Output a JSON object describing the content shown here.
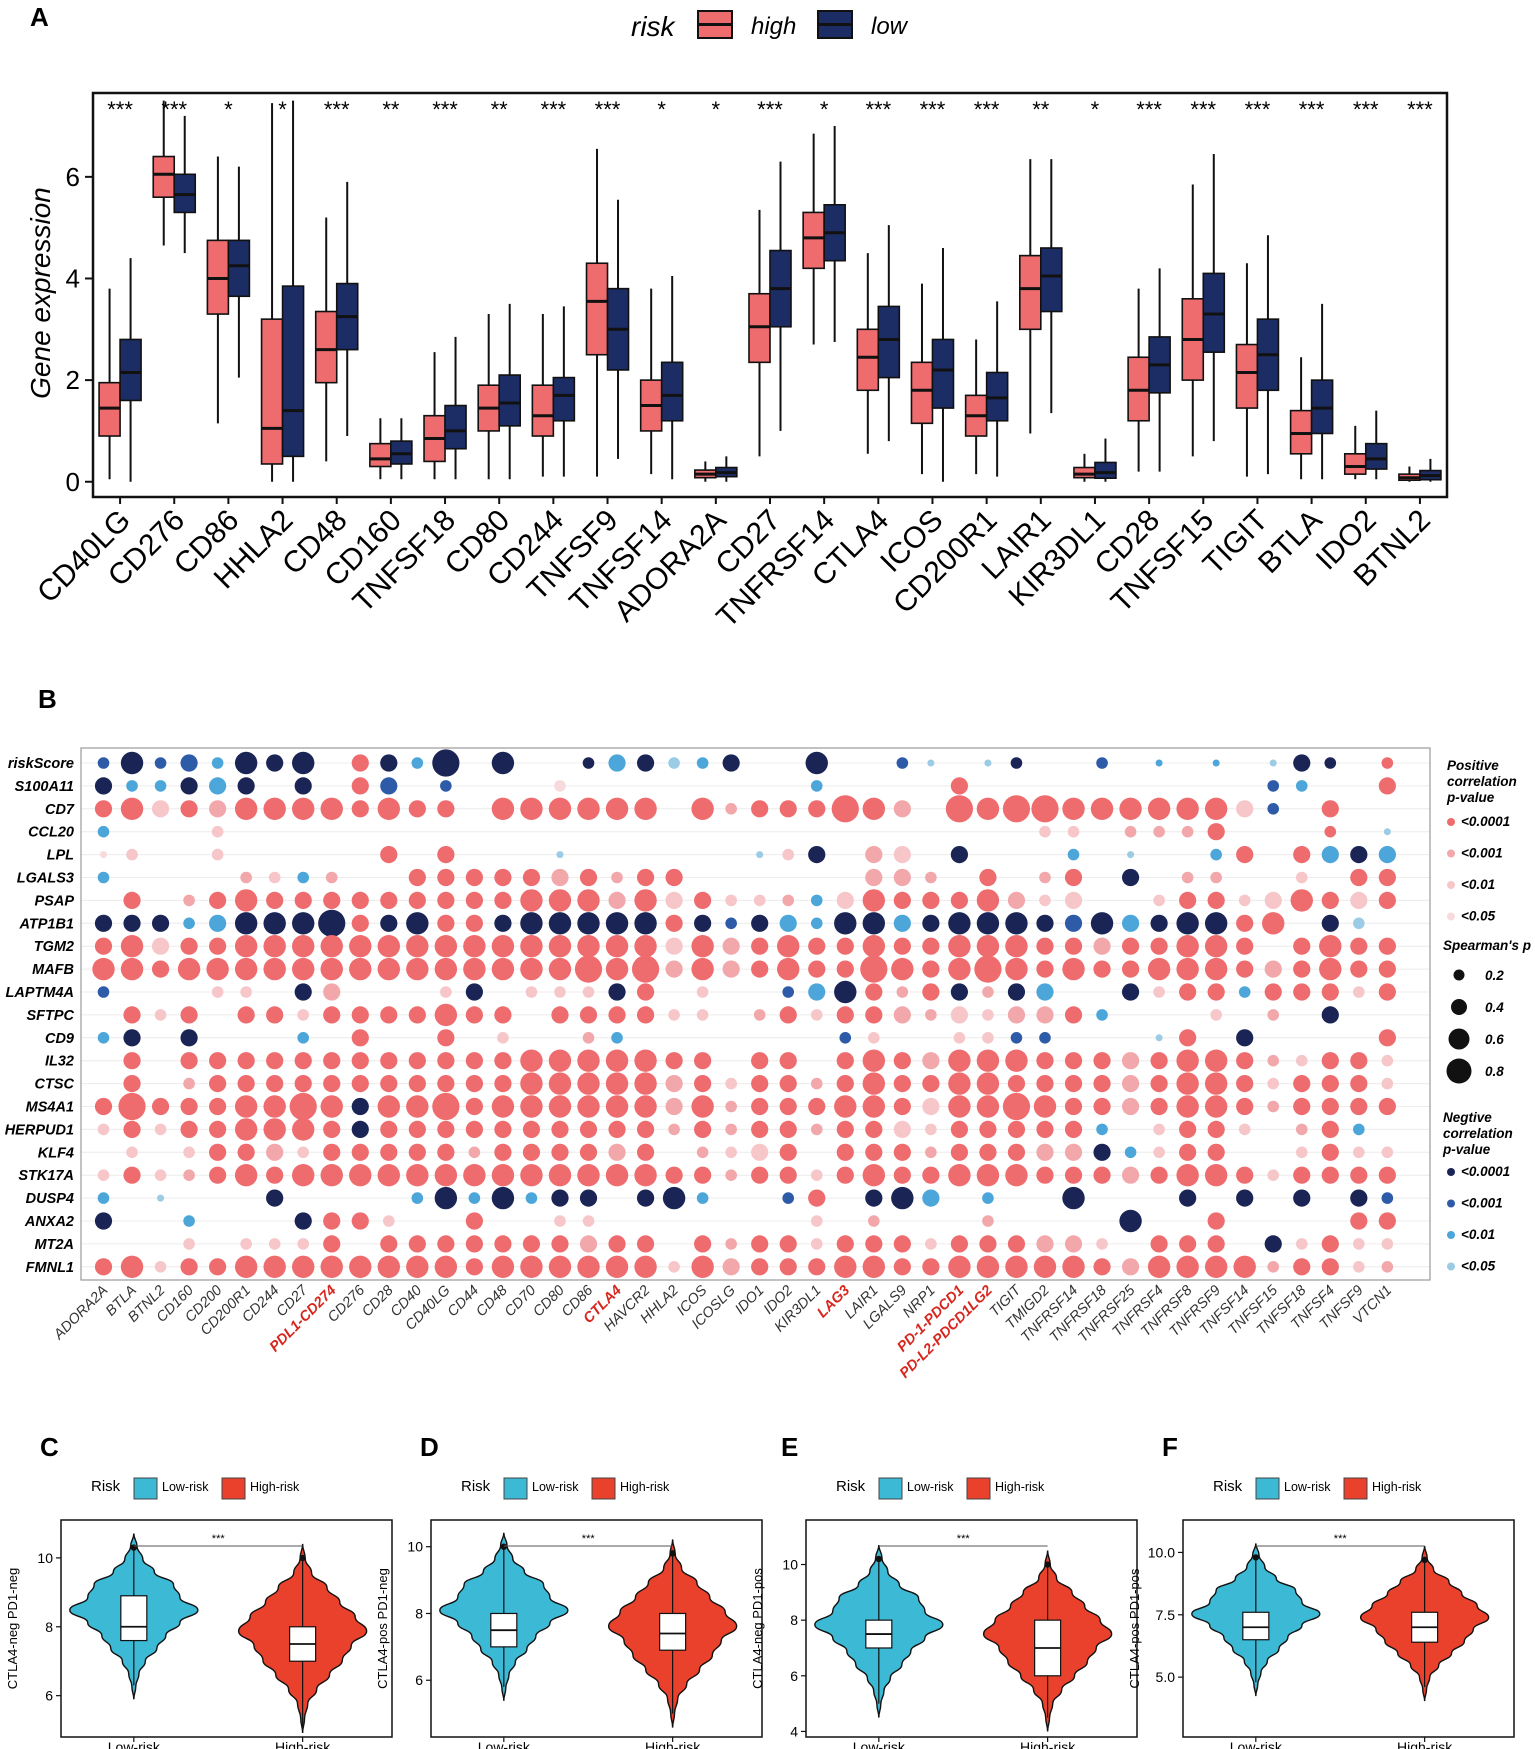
{
  "colors": {
    "high": "#EE6B6E",
    "low": "#1C2D66",
    "pos_strong": "#EE6B6E",
    "pos_mid": "#F2A7AB",
    "pos_weak": "#F6C6C9",
    "pos_faint": "#F8DADC",
    "neg_strong": "#1A2555",
    "neg_mid": "#2E5BA8",
    "neg_weak": "#4CA6D9",
    "neg_faint": "#9CCBE6",
    "violin_low": "#3CB9D4",
    "violin_high": "#E9412B",
    "label_red": "#D7261E"
  },
  "panels": {
    "a": {
      "letter": "A"
    },
    "b": {
      "letter": "B"
    },
    "c": {
      "letter": "C"
    },
    "d": {
      "letter": "D"
    },
    "e": {
      "letter": "E"
    },
    "f": {
      "letter": "F"
    }
  },
  "chart_data": [
    {
      "panel": "A",
      "type": "box",
      "legend": {
        "title": "risk",
        "items": [
          "high",
          "low"
        ]
      },
      "ylabel": "Gene expression",
      "ylim": [
        -0.3,
        7.65
      ],
      "yticks": [
        0,
        2,
        4,
        6
      ],
      "genes": [
        "CD40LG",
        "CD276",
        "CD86",
        "HHLA2",
        "CD48",
        "CD160",
        "TNFSF18",
        "CD80",
        "CD244",
        "TNFSF9",
        "TNFSF14",
        "ADORA2A",
        "CD27",
        "TNFRSF14",
        "CTLA4",
        "ICOS",
        "CD200R1",
        "LAIR1",
        "KIR3DL1",
        "CD28",
        "TNFSF15",
        "TIGIT",
        "BTLA",
        "IDO2",
        "BTNL2"
      ],
      "significance": [
        "***",
        "***",
        "*",
        "*",
        "***",
        "**",
        "***",
        "**",
        "***",
        "***",
        "*",
        "*",
        "***",
        "*",
        "***",
        "***",
        "***",
        "**",
        "*",
        "***",
        "***",
        "***",
        "***",
        "***",
        "***"
      ],
      "high": [
        [
          0.05,
          0.9,
          1.45,
          1.95,
          3.8
        ],
        [
          4.65,
          5.6,
          6.05,
          6.4,
          7.5
        ],
        [
          1.15,
          3.3,
          4.0,
          4.75,
          6.4
        ],
        [
          0.0,
          0.35,
          1.05,
          3.2,
          7.45
        ],
        [
          0.4,
          1.95,
          2.6,
          3.35,
          5.2
        ],
        [
          0.05,
          0.3,
          0.45,
          0.75,
          1.25
        ],
        [
          0.05,
          0.4,
          0.85,
          1.3,
          2.55
        ],
        [
          0.05,
          1.0,
          1.45,
          1.9,
          3.3
        ],
        [
          0.1,
          0.9,
          1.3,
          1.9,
          3.3
        ],
        [
          0.1,
          2.5,
          3.55,
          4.3,
          6.55
        ],
        [
          0.15,
          1.0,
          1.5,
          2.0,
          3.8
        ],
        [
          0.0,
          0.08,
          0.15,
          0.23,
          0.4
        ],
        [
          0.5,
          2.35,
          3.05,
          3.7,
          5.35
        ],
        [
          2.7,
          4.2,
          4.8,
          5.3,
          6.85
        ],
        [
          0.55,
          1.8,
          2.45,
          3.0,
          4.5
        ],
        [
          0.15,
          1.15,
          1.8,
          2.35,
          3.9
        ],
        [
          0.15,
          0.9,
          1.3,
          1.7,
          2.8
        ],
        [
          0.95,
          3.0,
          3.8,
          4.45,
          6.35
        ],
        [
          0.0,
          0.08,
          0.15,
          0.28,
          0.55
        ],
        [
          0.2,
          1.2,
          1.8,
          2.45,
          3.8
        ],
        [
          0.5,
          2.0,
          2.8,
          3.6,
          5.85
        ],
        [
          0.1,
          1.45,
          2.15,
          2.7,
          4.3
        ],
        [
          0.05,
          0.55,
          0.95,
          1.4,
          2.45
        ],
        [
          0.05,
          0.15,
          0.3,
          0.55,
          1.1
        ],
        [
          0.0,
          0.03,
          0.08,
          0.15,
          0.3
        ]
      ],
      "low": [
        [
          0.0,
          1.6,
          2.15,
          2.8,
          4.4
        ],
        [
          4.5,
          5.3,
          5.65,
          6.05,
          7.2
        ],
        [
          2.05,
          3.65,
          4.25,
          4.75,
          6.2
        ],
        [
          0.0,
          0.5,
          1.4,
          3.85,
          7.5
        ],
        [
          0.9,
          2.6,
          3.25,
          3.9,
          5.9
        ],
        [
          0.05,
          0.35,
          0.55,
          0.8,
          1.25
        ],
        [
          0.05,
          0.65,
          1.0,
          1.5,
          2.85
        ],
        [
          0.05,
          1.1,
          1.55,
          2.1,
          3.5
        ],
        [
          0.1,
          1.2,
          1.7,
          2.05,
          3.45
        ],
        [
          0.45,
          2.2,
          3.0,
          3.8,
          5.55
        ],
        [
          0.05,
          1.2,
          1.7,
          2.35,
          4.05
        ],
        [
          0.0,
          0.1,
          0.18,
          0.28,
          0.5
        ],
        [
          1.0,
          3.05,
          3.8,
          4.55,
          6.3
        ],
        [
          2.75,
          4.35,
          4.9,
          5.45,
          7.0
        ],
        [
          0.8,
          2.05,
          2.8,
          3.45,
          5.05
        ],
        [
          0.0,
          1.45,
          2.2,
          2.8,
          4.6
        ],
        [
          0.1,
          1.2,
          1.65,
          2.15,
          3.55
        ],
        [
          1.35,
          3.35,
          4.05,
          4.6,
          6.35
        ],
        [
          0.0,
          0.07,
          0.18,
          0.38,
          0.85
        ],
        [
          0.2,
          1.75,
          2.3,
          2.85,
          4.2
        ],
        [
          0.8,
          2.55,
          3.3,
          4.1,
          6.45
        ],
        [
          0.15,
          1.8,
          2.5,
          3.2,
          4.85
        ],
        [
          0.05,
          0.95,
          1.45,
          2.0,
          3.5
        ],
        [
          0.05,
          0.25,
          0.45,
          0.75,
          1.4
        ],
        [
          0.0,
          0.04,
          0.12,
          0.22,
          0.45
        ]
      ]
    },
    {
      "panel": "B",
      "type": "dot",
      "rows": [
        "riskScore",
        "S100A11",
        "CD7",
        "CCL20",
        "LPL",
        "LGALS3",
        "PSAP",
        "ATP1B1",
        "TGM2",
        "MAFB",
        "LAPTM4A",
        "SFTPC",
        "CD9",
        "IL32",
        "CTSC",
        "MS4A1",
        "HERPUD1",
        "KLF4",
        "STK17A",
        "DUSP4",
        "ANXA2",
        "MT2A",
        "FMNL1"
      ],
      "columns": [
        "ADORA2A",
        "BTLA",
        "BTNL2",
        "CD160",
        "CD200",
        "CD200R1",
        "CD244",
        "CD27",
        "PDL1-CD274",
        "CD276",
        "CD28",
        "CD40",
        "CD40LG",
        "CD44",
        "CD48",
        "CD70",
        "CD80",
        "CD86",
        "CTLA4",
        "HAVCR2",
        "HHLA2",
        "ICOS",
        "ICOSLG",
        "IDO1",
        "IDO2",
        "KIR3DL1",
        "LAG3",
        "LAIR1",
        "LGALS9",
        "NRP1",
        "PD-1-PDCD1",
        "PD-L2-PDCD1LG2",
        "TIGIT",
        "TMIGD2",
        "TNFRSF14",
        "TNFRSF18",
        "TNFRSF25",
        "TNFRSF4",
        "TNFRSF8",
        "TNFRSF9",
        "TNFSF14",
        "TNFSF15",
        "TNFSF18",
        "TNFSF4",
        "TNFSF9",
        "VTCN1"
      ],
      "highlighted_columns": [
        "PDL1-CD274",
        "CTLA4",
        "LAG3",
        "PD-1-PDCD1",
        "PD-L2-PDCD1LG2"
      ],
      "encoding": "cell = sign + p-class + size digit; P/N = positive/negative; a <0.0001, b <0.001, c <0.01, d <0.05; size digit 1-5 maps rho 0.1-0.9; '..' = not significant",
      "cells": [
        "Nb2 Na4 Nb2 Nb3 Nc2 Na4 Na3 Na4 .. Pa3 Na3 Nc2 Na5 .. Na4 .. .. Na2 Nc3 Na3 Nd2 Nc2 Na3 .. .. Na4 .. .. Nb2 Nd1 .. Nd1 Na2 .. .. Nb2 .. Nc1 .. Nc1 .. Nd1 Na3 Na2 .. Pa2 ..",
        "Na3 Nc2 Nc2 Na3 Nc3 Na3 .. Na3 .. Pa3 Nb3 .. Nb2 .. .. .. Pd2 .. .. .. .. .. .. .. .. Nc2 .. .. .. .. Pa3 .. .. .. .. .. .. .. .. .. .. Nb2 Nc2 .. .. Pa3",
        "Pa3 Pa4 Pc3 Pa3 Pb3 Pa4 Pa4 Pa4 Pa4 Pa3 Pa4 Pa3 Pa3 .. Pa4 Pa4 Pa4 Pa4 Pa4 Pa4 .. Pa4 Pb2 Pa3 Pa3 Pa3 Pa5 Pa4 Pb3 .. Pa5 Pa4 Pa5 Pa5 Pa4 Pa4 Pa4 Pa4 Pa4 Pa4 Pc3 Nb2 .. Pa3 .. ..",
        "Nc2 .. .. .. Pc2 .. .. .. .. .. .. .. .. .. .. .. .. .. .. .. .. .. .. .. .. .. .. .. .. .. .. .. .. Pc2 Pc2 .. Pb2 Pb2 Pb2 Pa3 .. .. .. Pa2 .. Nd1",
        "Pd1 Pc2 .. .. Pc2 .. .. .. .. .. Pa3 .. Pa3 .. .. .. Nd1 .. .. .. .. .. .. Nd1 Pc2 Na3 .. Pb3 Pc3 .. Na3 .. .. .. Nc2 .. Nd1 .. .. Nc2 Pa3 .. Pa3 Nc3 Na3 Nc3",
        "Nc2 .. .. .. .. Pb2 Pc2 Nc2 Pb2 .. .. Pa3 Pa3 Pa3 Pa3 Pa3 Pb3 Pa3 Pb2 Pa3 Pa3 .. .. .. .. .. .. Pb3 Pb3 Pb2 .. Pa3 .. Pb2 Pa3 .. Na3 .. Pb2 Pb2 .. .. Pc2 .. Pa3 Pa3",
        ".. Pa3 .. Pb2 Pa3 Pa4 Pa3 Pa3 Pa3 Pa3 Pa3 Pa3 Pa3 Pa3 Pa3 Pa4 Pa4 Pa4 Pb3 Pa4 Pc3 Pa3 Pc2 Pc2 Pb2 Nc2 Pc3 Pa4 Pa3 Pa3 Pa3 Pa4 Pb3 Pc2 Pc3 .. .. Pc2 Pa3 Pa3 Pc2 Pc3 Pa4 Pa3 Pc3 Pa3",
        "Na3 Na3 Na3 Nc2 Nc3 Na4 Na4 Na4 Na5 Pa3 Na3 Na4 Pa3 Pa3 Na3 Na4 Na4 Na4 Na4 Na4 Pa3 Na3 Nb2 Na3 Nc3 Nc2 Na4 Na4 Nc3 Na3 Na4 Na4 Na4 Na3 Nb3 Na4 Nc3 Na3 Na4 Na4 Pa3 Pa4 .. Na3 Nd2 ..",
        "Pa3 Pa4 Pc3 Pa3 Pa3 Pa4 Pa4 Pa4 Pa4 Pa4 Pa4 Pa4 Pa4 Pa4 Pa4 Pa4 Pa4 Pa4 Pa4 Pa4 Pc3 Pa4 Pb3 Pa3 Pa4 Pa3 Pa3 Pa4 Pa3 Pa3 Pa4 Pa4 Pa4 Pa3 Pa3 Pb3 Pa3 Pa3 Pa4 Pa4 Pa3 .. Pa3 Pa4 Pa3 Pa3",
        "Pa4 Pa4 Pa3 Pa4 Pa4 Pa4 Pa4 Pa4 Pa4 Pa4 Pa4 Pa4 Pa4 Pa4 Pa4 Pa4 Pa4 Pa5 Pa4 Pa5 Pb3 Pa4 Pb3 Pa3 Pa4 Pa3 Pa3 Pa5 Pa4 Pa3 Pa4 Pa5 Pa4 Pa3 Pa4 Pa3 Pa3 Pa4 Pa4 Pa4 Pa3 Pb3 Pa3 Pa4 Pa3 Pa3",
        "Nb2 .. .. .. Pc2 Pc2 .. Na3 Pb3 .. .. .. Pc2 Na3 .. Pc2 Pc2 Pc2 Na3 Pa3 .. Pc2 .. .. Nb2 Nc3 Na4 Pa3 Pb2 Pa3 Na3 Pb2 Na3 Nc3 .. .. Na3 Pc2 Pa3 Pa3 Nc2 Pa3 Pa3 Pa3 Pc2 Pa3",
        ".. Pa3 Pc2 Pa3 .. Pa3 Pa3 Pc2 Pa3 Pa3 Pa3 Pa3 Pa4 Pa3 Pa3 .. Pa3 Pa3 Pa3 Pa3 Pc2 Pc2 .. Pb2 Pa3 Pc2 Pa3 Pa3 Pb3 Pb2 Pc3 Pc2 Pb3 Pb3 Pa3 Nc2 .. .. .. Pc2 .. Pb2 .. Na3 .. ..",
        "Nc2 Na3 .. Na3 .. .. .. Nc2 .. Pa3 .. .. Pa3 .. Pc2 .. .. Pb2 Nc2 .. .. .. .. .. .. .. Nb2 Pc2 .. .. Pc2 Pc2 Nb2 Nb2 .. .. .. Nd1 Pa3 .. Na3 .. .. .. .. Pa3",
        ".. Pa3 .. Pa3 Pa3 Pa3 Pa3 Pa3 Pa3 Pa3 Pa3 Pa3 Pa3 Pa3 Pa3 Pa4 Pa4 Pa4 Pa4 Pa4 Pa3 Pa3 .. Pa3 Pa3 .. Pa3 Pa4 Pa3 Pb3 Pa4 Pa4 Pa4 Pa3 Pa3 Pa3 Pb3 Pa3 Pa4 Pa4 Pa3 Pb2 Pc2 Pa3 Pa3 Pc2",
        ".. Pa3 .. Pb2 Pa3 Pa3 Pa3 Pa3 Pa3 Pa3 Pa3 Pa3 Pa3 Pa3 Pa3 Pa4 Pa4 Pa4 Pa4 Pa4 Pb3 Pa3 Pc2 Pa3 Pa3 Pb2 Pa3 Pa4 Pa3 Pa3 Pa4 Pa4 Pa3 Pa3 Pa3 Pa3 Pb3 Pa3 Pa4 Pa4 Pa3 Pc2 Pa3 Pa3 Pa3 Pc2",
        "Pa3 Pa5 Pa3 Pa3 Pa3 Pa4 Pa4 Pa5 Pa4 Na3 Pa4 Pa4 Pa5 Pa3 Pa4 Pa4 Pa4 Pa4 Pa4 Pa4 Pb3 Pa4 Pb2 Pa3 Pa3 Pa3 Pa4 Pa4 Pa3 Pc3 Pa4 Pa4 Pa5 Pa4 Pa3 Pa3 Pb3 Pa3 Pa4 Pa4 Pa3 Pb2 Pa3 Pa3 Pa3 Pa3",
        "Pc2 Pa3 Pc2 Pa3 Pa3 Pa4 Pa4 Pa4 Pa3 Na3 Pa3 Pa3 Pa3 Pa3 Pa3 Pa3 Pa3 Pa3 Pa3 Pa3 Pb2 Pa3 Pb2 Pa3 Pa3 Pb2 Pa3 Pa3 Pc3 Pc2 Pa3 Pa3 Pa3 Pa3 Pa3 Nc2 .. Pc2 Pa3 Pa3 Pc2 .. Pb2 Pa3 Nc2 ..",
        ".. Pc2 .. Pc2 Pa3 Pa3 Pb3 Pc2 Pa3 Pa3 Pa3 Pa3 Pa3 Pb2 Pa3 Pa3 Pa3 Pa3 Pb3 Pa3 .. Pb2 Pc2 Pc3 Pa3 .. Pa3 Pa3 Pa3 Pb2 Pa3 Pa3 Pa3 Pb3 Pb3 Na3 Nc2 Pc2 Pa3 Pa3 .. .. Pc2 Pa3 Pc2 Pc2",
        "Pc2 Pa3 Pc2 Pb2 Pa3 Pa4 Pa3 Pa4 Pa4 Pa4 Pa4 Pa4 Pa4 Pa4 Pa4 Pa4 Pa4 Pa4 Pa4 Pa4 Pa3 Pa3 Pb2 Pa3 Pa3 Pc2 Pa3 Pa4 Pa3 Pa3 Pa4 Pa4 Pa4 Pa3 Pa3 Pa3 Pb3 Pa3 Pa4 Pa4 Pa3 Pc2 Pa3 Pa3 Pa3 Pa3",
        "Nc2 .. Nd1 .. .. .. Na3 .. .. .. .. Nc2 Na4 Nc2 Na4 Nc2 Na3 Na3 .. Na3 Na4 Nc2 .. .. Nb2 Pa3 .. Na3 Na4 Nc3 .. Nc2 .. .. Na4 .. .. .. Na3 .. Na3 .. Na3 .. Na3 Nb2",
        "Na3 .. .. Nc2 .. .. .. Na3 Pa3 Pa3 Pc2 .. .. Pa3 .. .. Pc2 Pc2 .. .. .. .. .. .. .. Pc2 .. Pb2 .. .. .. Pb2 .. .. .. .. Na4 .. .. Pa3 .. .. .. .. Pa3 Pa3",
        ".. .. .. Pc2 .. Pc2 Pc2 Pc2 Pa3 .. Pa3 Pa3 Pa3 Pa3 Pa3 Pa3 Pa3 Pb3 Pa3 Pa3 .. Pa3 Pb2 Pa3 Pa3 Pc2 Pa3 Pa3 Pa3 Pc2 Pa3 Pa3 Pa3 Pb3 Pb3 Pc2 .. Pa3 Pa3 Pa3 .. Na3 Pc2 Pa3 Pc2 Pc2",
        "Pa3 Pa4 Pc2 Pa3 Pa3 Pa4 Pa4 Pa4 Pa4 Pa4 Pa4 Pa4 Pa4 Pa3 Pa4 Pa4 Pa4 Pa4 Pa4 Pa4 Pc2 Pa4 Pb3 Pa3 Pa3 Pa3 Pa4 Pa4 Pa3 Pa3 Pa4 Pa4 Pa4 Pa4 Pa4 Pa3 Pb3 Pa4 Pa4 Pa4 Pa4 Pb2 Pa3 Pa3 Pc2 Pb2"
      ],
      "legend": {
        "positive_title": [
          "Positive",
          "correlation",
          "p-value"
        ],
        "negative_title": [
          "Negtive",
          "correlation",
          "p-value"
        ],
        "pvalue_labels": [
          "<0.0001",
          "<0.001",
          "<0.01",
          "<0.05"
        ],
        "size_title": "Spearman's p",
        "size_values": [
          "0.2",
          "0.4",
          "0.6",
          "0.8"
        ]
      }
    },
    {
      "panel": "C",
      "type": "violin",
      "legend": {
        "title": "Risk",
        "items": [
          "Low-risk",
          "High-risk"
        ]
      },
      "ylabel": "CTLA4-neg PD1-neg",
      "categories": [
        "Low-risk",
        "High-risk"
      ],
      "yticks": [
        "6",
        "8",
        "10"
      ],
      "ytick_values": [
        6,
        8,
        10
      ],
      "ylim": [
        4.8,
        11.1
      ],
      "significance": "***",
      "box": [
        [
          6.3,
          7.6,
          8.0,
          8.9,
          10.3
        ],
        [
          5.0,
          7.0,
          7.5,
          8.0,
          10.0
        ]
      ]
    },
    {
      "panel": "D",
      "type": "violin",
      "legend": {
        "title": "Risk",
        "items": [
          "Low-risk",
          "High-risk"
        ]
      },
      "ylabel": "CTLA4-pos PD1-neg",
      "categories": [
        "Low-risk",
        "High-risk"
      ],
      "yticks": [
        "6",
        "8",
        "10"
      ],
      "ytick_values": [
        6,
        8,
        10
      ],
      "ylim": [
        4.3,
        10.8
      ],
      "significance": "***",
      "box": [
        [
          5.8,
          7.0,
          7.5,
          8.0,
          10.0
        ],
        [
          5.0,
          6.9,
          7.4,
          8.0,
          9.8
        ]
      ]
    },
    {
      "panel": "E",
      "type": "violin",
      "legend": {
        "title": "Risk",
        "items": [
          "Low-risk",
          "High-risk"
        ]
      },
      "ylabel": "CTLA4-neg PD1-pos",
      "categories": [
        "Low-risk",
        "High-risk"
      ],
      "yticks": [
        "4",
        "6",
        "8",
        "10"
      ],
      "ytick_values": [
        4,
        6,
        8,
        10
      ],
      "ylim": [
        3.8,
        11.6
      ],
      "significance": "***",
      "box": [
        [
          5.0,
          7.0,
          7.5,
          8.0,
          10.2
        ],
        [
          4.5,
          6.0,
          7.0,
          8.0,
          10.0
        ]
      ]
    },
    {
      "panel": "F",
      "type": "violin",
      "legend": {
        "title": "Risk",
        "items": [
          "Low-risk",
          "High-risk"
        ]
      },
      "ylabel": "CTLA4-pos PD1-pos",
      "categories": [
        "Low-risk",
        "High-risk"
      ],
      "yticks": [
        "5.0",
        "7.5",
        "10.0"
      ],
      "ytick_values": [
        5.0,
        7.5,
        10.0
      ],
      "ylim": [
        2.6,
        11.3
      ],
      "significance": "***",
      "box": [
        [
          4.8,
          6.5,
          7.0,
          7.6,
          9.8
        ],
        [
          4.6,
          6.4,
          7.0,
          7.6,
          9.7
        ]
      ]
    }
  ]
}
